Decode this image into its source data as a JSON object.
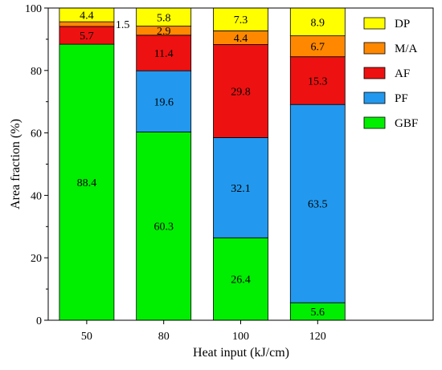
{
  "chart_data": {
    "type": "bar",
    "stacked": true,
    "xlabel": "Heat input (kJ/cm)",
    "ylabel": "Area fraction (%)",
    "ylim": [
      0,
      100
    ],
    "yticks": [
      0,
      20,
      40,
      60,
      80,
      100
    ],
    "categories": [
      "50",
      "80",
      "100",
      "120"
    ],
    "series": [
      {
        "name": "GBF",
        "color": "#00ee00",
        "values": [
          88.4,
          60.3,
          26.4,
          5.6
        ]
      },
      {
        "name": "PF",
        "color": "#2299ee",
        "values": [
          0,
          19.6,
          32.1,
          63.5
        ]
      },
      {
        "name": "AF",
        "color": "#ee1111",
        "values": [
          5.7,
          11.4,
          29.8,
          15.3
        ]
      },
      {
        "name": "M/A",
        "color": "#ff8800",
        "values": [
          1.5,
          2.9,
          4.4,
          6.7
        ]
      },
      {
        "name": "DP",
        "color": "#ffff00",
        "values": [
          4.4,
          5.8,
          7.3,
          8.9
        ]
      }
    ],
    "labels": [
      [
        "88.4",
        "",
        "5.7",
        "1.5",
        "4.4"
      ],
      [
        "60.3",
        "19.6",
        "11.4",
        "2.9",
        "5.8"
      ],
      [
        "26.4",
        "32.1",
        "29.8",
        "4.4",
        "7.3"
      ],
      [
        "5.6",
        "63.5",
        "15.3",
        "6.7",
        "8.9"
      ]
    ],
    "legend": {
      "position": "top-right",
      "order": [
        "DP",
        "M/A",
        "AF",
        "PF",
        "GBF"
      ]
    },
    "grid": false
  }
}
